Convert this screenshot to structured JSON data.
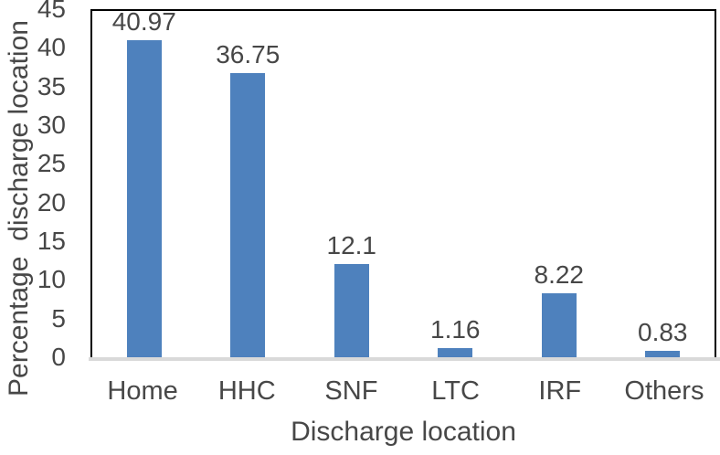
{
  "chart_data": {
    "type": "bar",
    "title": "",
    "categories": [
      "Home",
      "HHC",
      "SNF",
      "LTC",
      "IRF",
      "Others"
    ],
    "values": [
      40.97,
      36.75,
      12.1,
      1.16,
      8.22,
      0.83
    ],
    "value_labels": [
      "40.97",
      "36.75",
      "12.1",
      "1.16",
      "8.22",
      "0.83"
    ],
    "xlabel": "Discharge location",
    "ylabel": "Percentage  discharge location",
    "ylim": [
      0,
      45
    ],
    "yticks": [
      0,
      5,
      10,
      15,
      20,
      25,
      30,
      35,
      40,
      45
    ],
    "grid": false,
    "legend": "none",
    "data_labels": "above-bars",
    "bar_color": "#4e81bd",
    "text_color": "#474747",
    "axis_line_color": "#d9d9d9",
    "plot_border_color": "#000000"
  }
}
